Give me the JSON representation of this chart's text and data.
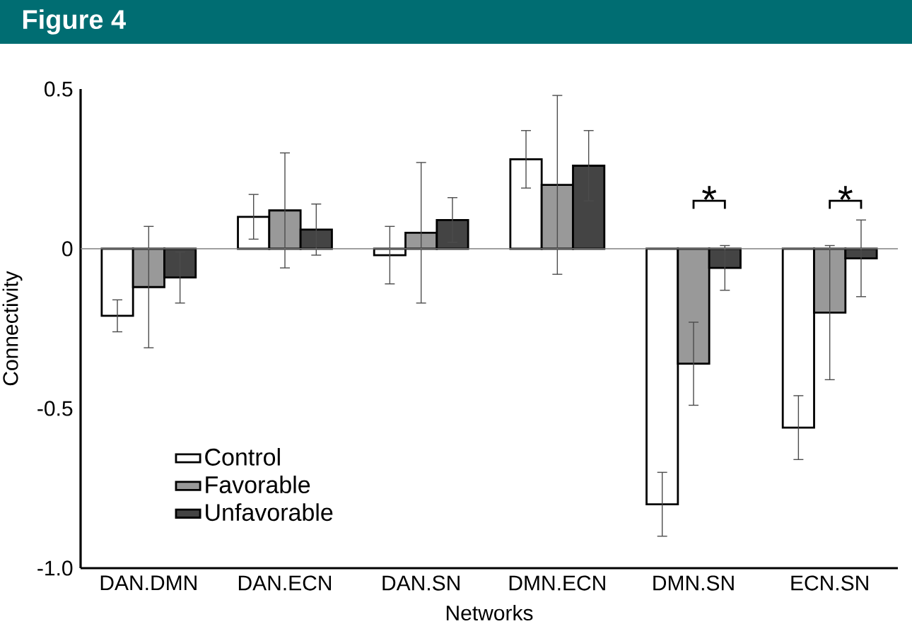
{
  "chart_data": {
    "type": "bar",
    "title": "Figure 4",
    "xlabel": "Networks",
    "ylabel": "Connectivity",
    "categories": [
      "DAN.DMN",
      "DAN.ECN",
      "DAN.SN",
      "DMN.ECN",
      "DMN.SN",
      "ECN.SN"
    ],
    "ylim": [
      -1.0,
      0.5
    ],
    "yticks": [
      0.5,
      0,
      -0.5,
      {
        "value": -1.0,
        "label": "-1.0"
      }
    ],
    "series": [
      {
        "name": "Control",
        "color": "#ffffff",
        "values": [
          -0.21,
          0.1,
          -0.02,
          0.28,
          -0.8,
          -0.56
        ],
        "errors": [
          0.05,
          0.07,
          0.09,
          0.09,
          0.1,
          0.1
        ]
      },
      {
        "name": "Favorable",
        "color": "#999999",
        "values": [
          -0.12,
          0.12,
          0.05,
          0.2,
          -0.36,
          -0.2
        ],
        "errors": [
          0.19,
          0.18,
          0.22,
          0.28,
          0.13,
          0.21
        ]
      },
      {
        "name": "Unfavorable",
        "color": "#444444",
        "values": [
          -0.09,
          0.06,
          0.09,
          0.26,
          -0.06,
          -0.03
        ],
        "errors": [
          0.08,
          0.08,
          0.07,
          0.11,
          0.07,
          0.12
        ]
      }
    ],
    "ref_lines": [
      {
        "axis": "y",
        "value": 0,
        "color": "#808080"
      }
    ],
    "annotations": [
      "*",
      "*"
    ],
    "legend": "bottom left"
  }
}
